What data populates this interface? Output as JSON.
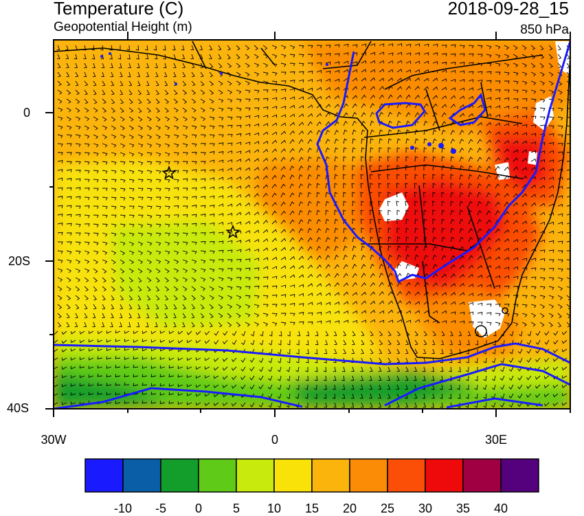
{
  "header": {
    "title": "Temperature (C)",
    "subtitle": "Geopotential Height (m)",
    "datetime": "2018-09-28_15",
    "level": "850 hPa"
  },
  "axes": {
    "y_ticks": [
      "0",
      "20S",
      "40S"
    ],
    "x_ticks": [
      "30W",
      "0",
      "30E"
    ]
  },
  "colorbar": {
    "colors": [
      "#1a1aff",
      "#0a5ea8",
      "#139e2c",
      "#5fcb18",
      "#c8ea0c",
      "#f8e208",
      "#fbb40c",
      "#fb8c06",
      "#fb4e06",
      "#ee0a0a",
      "#a00042",
      "#55007d"
    ],
    "labels": [
      "-10",
      "-5",
      "0",
      "5",
      "10",
      "15",
      "20",
      "25",
      "30",
      "35",
      "40"
    ]
  },
  "markers": [
    "star",
    "star"
  ],
  "colors": {
    "contour": "#1a1aff",
    "coast": "#000000",
    "missing": "#ffffff"
  }
}
